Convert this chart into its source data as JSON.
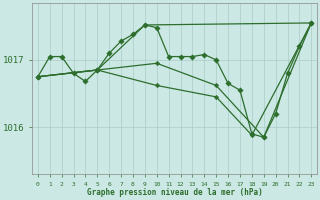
{
  "xlabel": "Graphe pression niveau de la mer (hPa)",
  "bg_color": "#cce8e4",
  "line_color": "#2d6e2d",
  "grid_color": "#aaccc8",
  "border_color": "#888888",
  "label_color": "#2d6e2d",
  "ylim_min": 1015.3,
  "ylim_max": 1017.85,
  "yticks": [
    1016,
    1017
  ],
  "xticks": [
    0,
    1,
    2,
    3,
    4,
    5,
    6,
    7,
    8,
    9,
    10,
    11,
    12,
    13,
    14,
    15,
    16,
    17,
    18,
    19,
    20,
    21,
    22,
    23
  ],
  "series": [
    {
      "x": [
        0,
        1,
        2,
        3,
        4,
        5,
        6,
        7,
        8,
        9,
        10,
        11,
        12,
        13,
        14,
        15,
        16,
        17,
        18,
        19,
        20,
        21,
        22,
        23
      ],
      "y": [
        1016.75,
        1017.05,
        1017.05,
        1016.8,
        1016.68,
        1016.85,
        1017.1,
        1017.28,
        1017.38,
        1017.52,
        1017.48,
        1017.05,
        1017.05,
        1017.05,
        1017.08,
        1017.0,
        1016.65,
        1016.55,
        1015.9,
        1015.85,
        1016.2,
        1016.8,
        1017.2,
        1017.55
      ]
    },
    {
      "x": [
        0,
        5,
        10,
        15,
        18,
        23
      ],
      "y": [
        1016.75,
        1016.85,
        1016.62,
        1016.45,
        1015.88,
        1017.55
      ]
    },
    {
      "x": [
        0,
        5,
        9,
        23
      ],
      "y": [
        1016.75,
        1016.85,
        1017.52,
        1017.55
      ]
    },
    {
      "x": [
        0,
        5,
        10,
        15,
        19,
        23
      ],
      "y": [
        1016.75,
        1016.85,
        1016.95,
        1016.62,
        1015.85,
        1017.55
      ]
    }
  ]
}
